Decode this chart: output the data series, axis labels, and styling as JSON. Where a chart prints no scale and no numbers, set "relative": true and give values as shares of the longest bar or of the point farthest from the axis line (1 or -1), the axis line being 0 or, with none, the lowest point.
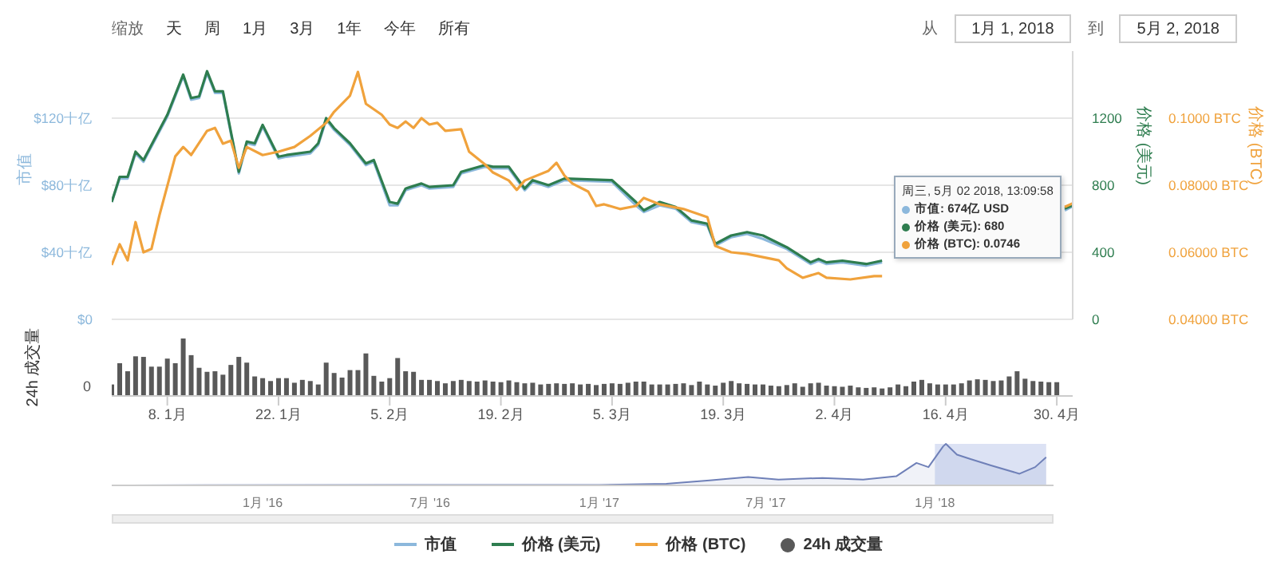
{
  "chart_data": [
    {
      "type": "line",
      "ylabel": "市值",
      "y2label": "价格 (美元)",
      "y3label": "价格 (BTC)",
      "xlim": [
        "2018-01-01",
        "2018-05-02"
      ],
      "ylim": [
        0,
        160
      ],
      "yticks": [
        {
          "value": 0,
          "label": "$0"
        },
        {
          "value": 40,
          "label": "$40十亿"
        },
        {
          "value": 80,
          "label": "$80十亿"
        },
        {
          "value": 120,
          "label": "$120十亿"
        }
      ],
      "y2lim": [
        0,
        1600
      ],
      "y2ticks": [
        0,
        400,
        800,
        1200
      ],
      "y3lim": [
        0.04,
        0.12
      ],
      "y3ticks": [
        {
          "value": 0.04,
          "label": "0.04000 BTC"
        },
        {
          "value": 0.06,
          "label": "0.06000 BTC"
        },
        {
          "value": 0.08,
          "label": "0.08000 BTC"
        },
        {
          "value": 0.1,
          "label": "0.1000 BTC"
        }
      ],
      "tick_labels": "y",
      "grid": "y",
      "legend": "bottom",
      "annotations": [
        "缩放",
        "天",
        "周",
        "1月",
        "3月",
        "1年",
        "今年",
        "所有",
        "从",
        "1月 1, 2018",
        "到",
        "5月 2, 2018",
        "周三, 5月 02 2018, 13:09:58",
        "市值: 674亿 USD",
        "价格 (美元): 680",
        "价格 (BTC): 0.0746"
      ],
      "series": [
        {
          "name": "市值",
          "color": "#8cb8dc",
          "x": [
            "2018-01-01",
            "2018-01-02",
            "2018-01-03",
            "2018-01-04",
            "2018-01-05",
            "2018-01-08",
            "2018-01-10",
            "2018-01-11",
            "2018-01-12",
            "2018-01-13",
            "2018-01-14",
            "2018-01-15",
            "2018-01-17",
            "2018-01-18",
            "2018-01-19",
            "2018-01-20",
            "2018-01-22",
            "2018-01-23",
            "2018-01-26",
            "2018-01-27",
            "2018-01-28",
            "2018-01-29",
            "2018-01-31",
            "2018-02-02",
            "2018-02-03",
            "2018-02-05",
            "2018-02-06",
            "2018-02-07",
            "2018-02-09",
            "2018-02-10",
            "2018-02-13",
            "2018-02-14",
            "2018-02-17",
            "2018-02-18",
            "2018-02-20",
            "2018-02-22",
            "2018-02-23",
            "2018-02-25",
            "2018-02-27",
            "2018-03-05",
            "2018-03-08",
            "2018-03-09",
            "2018-03-11",
            "2018-03-13",
            "2018-03-15",
            "2018-03-17",
            "2018-03-18",
            "2018-03-20",
            "2018-03-22",
            "2018-03-24",
            "2018-03-27",
            "2018-03-30",
            "2018-03-31",
            "2018-04-01",
            "2018-04-03",
            "2018-04-06",
            "2018-04-08",
            "2018-04-19",
            "2018-05-01",
            "2018-05-02"
          ],
          "values": [
            70,
            84,
            84,
            99,
            94,
            121,
            145,
            131,
            132,
            147,
            135,
            135,
            87,
            105,
            104,
            115,
            96,
            97,
            99,
            104,
            119,
            113,
            104,
            92,
            94,
            68,
            68,
            77,
            80,
            78,
            79,
            87,
            91,
            90,
            90,
            77,
            82,
            79,
            83,
            82,
            68,
            64,
            68,
            66,
            58,
            56,
            44,
            49,
            51,
            48,
            42,
            33,
            35,
            33,
            34,
            32,
            34,
            null,
            65,
            67.4
          ]
        },
        {
          "name": "价格 (美元)",
          "color": "#2e7d4f",
          "axis": "y2",
          "x": [
            "2018-01-01",
            "2018-01-02",
            "2018-01-03",
            "2018-01-04",
            "2018-01-05",
            "2018-01-08",
            "2018-01-10",
            "2018-01-11",
            "2018-01-12",
            "2018-01-13",
            "2018-01-14",
            "2018-01-15",
            "2018-01-17",
            "2018-01-18",
            "2018-01-19",
            "2018-01-20",
            "2018-01-22",
            "2018-01-23",
            "2018-01-26",
            "2018-01-27",
            "2018-01-28",
            "2018-01-29",
            "2018-01-31",
            "2018-02-02",
            "2018-02-03",
            "2018-02-05",
            "2018-02-06",
            "2018-02-07",
            "2018-02-09",
            "2018-02-10",
            "2018-02-13",
            "2018-02-14",
            "2018-02-17",
            "2018-02-18",
            "2018-02-20",
            "2018-02-22",
            "2018-02-23",
            "2018-02-25",
            "2018-02-27",
            "2018-03-05",
            "2018-03-08",
            "2018-03-09",
            "2018-03-11",
            "2018-03-13",
            "2018-03-15",
            "2018-03-17",
            "2018-03-18",
            "2018-03-20",
            "2018-03-22",
            "2018-03-24",
            "2018-03-27",
            "2018-03-30",
            "2018-03-31",
            "2018-04-01",
            "2018-04-03",
            "2018-04-06",
            "2018-04-08",
            "2018-04-19",
            "2018-05-01",
            "2018-05-02"
          ],
          "values": [
            700,
            850,
            850,
            1000,
            950,
            1220,
            1460,
            1320,
            1330,
            1480,
            1360,
            1360,
            880,
            1060,
            1050,
            1160,
            970,
            980,
            1000,
            1050,
            1200,
            1140,
            1050,
            930,
            950,
            700,
            690,
            780,
            810,
            790,
            800,
            880,
            920,
            910,
            910,
            780,
            830,
            800,
            840,
            830,
            700,
            650,
            700,
            670,
            590,
            570,
            450,
            500,
            520,
            500,
            430,
            340,
            360,
            340,
            350,
            330,
            350,
            null,
            660,
            680
          ]
        },
        {
          "name": "价格 (BTC)",
          "color": "#f0a23c",
          "axis": "y3",
          "x": [
            "2018-01-01",
            "2018-01-02",
            "2018-01-03",
            "2018-01-04",
            "2018-01-05",
            "2018-01-06",
            "2018-01-07",
            "2018-01-09",
            "2018-01-10",
            "2018-01-11",
            "2018-01-13",
            "2018-01-14",
            "2018-01-15",
            "2018-01-16",
            "2018-01-17",
            "2018-01-18",
            "2018-01-20",
            "2018-01-22",
            "2018-01-24",
            "2018-01-26",
            "2018-01-28",
            "2018-01-29",
            "2018-01-31",
            "2018-02-01",
            "2018-02-02",
            "2018-02-04",
            "2018-02-05",
            "2018-02-06",
            "2018-02-07",
            "2018-02-08",
            "2018-02-09",
            "2018-02-10",
            "2018-02-11",
            "2018-02-12",
            "2018-02-14",
            "2018-02-15",
            "2018-02-17",
            "2018-02-18",
            "2018-02-20",
            "2018-02-21",
            "2018-02-22",
            "2018-02-25",
            "2018-02-26",
            "2018-02-27",
            "2018-02-28",
            "2018-03-02",
            "2018-03-03",
            "2018-03-04",
            "2018-03-06",
            "2018-03-08",
            "2018-03-09",
            "2018-03-11",
            "2018-03-14",
            "2018-03-17",
            "2018-03-18",
            "2018-03-20",
            "2018-03-22",
            "2018-03-26",
            "2018-03-27",
            "2018-03-29",
            "2018-03-31",
            "2018-04-01",
            "2018-04-04",
            "2018-04-07",
            "2018-04-08",
            "2018-04-19",
            "2018-05-01",
            "2018-05-02"
          ],
          "values": [
            0.0562,
            0.0624,
            0.0576,
            0.069,
            0.06,
            0.061,
            0.071,
            0.0886,
            0.0914,
            0.089,
            0.0962,
            0.0971,
            0.0924,
            0.0933,
            0.0852,
            0.0914,
            0.089,
            0.09,
            0.0914,
            0.0947,
            0.0986,
            0.1019,
            0.1067,
            0.1138,
            0.1043,
            0.101,
            0.0981,
            0.0971,
            0.099,
            0.0971,
            0.1,
            0.0981,
            0.0986,
            0.0962,
            0.0967,
            0.09,
            0.0862,
            0.0838,
            0.0814,
            0.0786,
            0.0814,
            0.0843,
            0.0867,
            0.0829,
            0.0805,
            0.0781,
            0.0738,
            0.0743,
            0.0729,
            0.0738,
            0.0762,
            0.0743,
            0.0729,
            0.0705,
            0.0619,
            0.06,
            0.0595,
            0.0576,
            0.0552,
            0.0524,
            0.0538,
            0.0524,
            0.0519,
            0.0529,
            0.0529,
            null,
            0.0735,
            0.0746
          ]
        }
      ]
    },
    {
      "type": "bar",
      "relative": true,
      "ylabel": "24h 成交量",
      "annotations": [
        "0"
      ],
      "legend": "bottom",
      "tick_labels": "x",
      "xlim": [
        "2018-01-01",
        "2018-05-02"
      ],
      "xticks": [
        {
          "value": "2018-01-08",
          "label": "8. 1月"
        },
        {
          "value": "2018-01-22",
          "label": "22. 1月"
        },
        {
          "value": "2018-02-05",
          "label": "5. 2月"
        },
        {
          "value": "2018-02-19",
          "label": "19. 2月"
        },
        {
          "value": "2018-03-05",
          "label": "5. 3月"
        },
        {
          "value": "2018-03-19",
          "label": "19. 3月"
        },
        {
          "value": "2018-04-02",
          "label": "2. 4月"
        },
        {
          "value": "2018-04-16",
          "label": "16. 4月"
        },
        {
          "value": "2018-04-30",
          "label": "30. 4月"
        }
      ],
      "x": [
        "2018-01-01",
        "2018-01-02",
        "2018-01-03",
        "2018-01-04",
        "2018-01-05",
        "2018-01-06",
        "2018-01-07",
        "2018-01-08",
        "2018-01-09",
        "2018-01-10",
        "2018-01-11",
        "2018-01-12",
        "2018-01-13",
        "2018-01-14",
        "2018-01-15",
        "2018-01-16",
        "2018-01-17",
        "2018-01-18",
        "2018-01-19",
        "2018-01-20",
        "2018-01-21",
        "2018-01-22",
        "2018-01-23",
        "2018-01-24",
        "2018-01-25",
        "2018-01-26",
        "2018-01-27",
        "2018-01-28",
        "2018-01-29",
        "2018-01-30",
        "2018-01-31",
        "2018-02-01",
        "2018-02-02",
        "2018-02-03",
        "2018-02-04",
        "2018-02-05",
        "2018-02-06",
        "2018-02-07",
        "2018-02-08",
        "2018-02-09",
        "2018-02-10",
        "2018-02-11",
        "2018-02-12",
        "2018-02-13",
        "2018-02-14",
        "2018-02-15",
        "2018-02-16",
        "2018-02-17",
        "2018-02-18",
        "2018-02-19",
        "2018-02-20",
        "2018-02-21",
        "2018-02-22",
        "2018-02-23",
        "2018-02-24",
        "2018-02-25",
        "2018-02-26",
        "2018-02-27",
        "2018-02-28",
        "2018-03-01",
        "2018-03-02",
        "2018-03-03",
        "2018-03-04",
        "2018-03-05",
        "2018-03-06",
        "2018-03-07",
        "2018-03-08",
        "2018-03-09",
        "2018-03-10",
        "2018-03-11",
        "2018-03-12",
        "2018-03-13",
        "2018-03-14",
        "2018-03-15",
        "2018-03-16",
        "2018-03-17",
        "2018-03-18",
        "2018-03-19",
        "2018-03-20",
        "2018-03-21",
        "2018-03-22",
        "2018-03-23",
        "2018-03-24",
        "2018-03-25",
        "2018-03-26",
        "2018-03-27",
        "2018-03-28",
        "2018-03-29",
        "2018-03-30",
        "2018-03-31",
        "2018-04-01",
        "2018-04-02",
        "2018-04-03",
        "2018-04-04",
        "2018-04-05",
        "2018-04-06",
        "2018-04-07",
        "2018-04-08",
        "2018-04-09",
        "2018-04-10",
        "2018-04-11",
        "2018-04-12",
        "2018-04-13",
        "2018-04-14",
        "2018-04-15",
        "2018-04-16",
        "2018-04-17",
        "2018-04-18",
        "2018-04-19",
        "2018-04-20",
        "2018-04-21",
        "2018-04-22",
        "2018-04-23",
        "2018-04-24",
        "2018-04-25",
        "2018-04-26",
        "2018-04-27",
        "2018-04-28",
        "2018-04-29",
        "2018-04-30"
      ],
      "series": [
        {
          "name": "24h 成交量",
          "color": "#595959",
          "values": [
            0.2,
            0.57,
            0.43,
            0.69,
            0.68,
            0.51,
            0.51,
            0.65,
            0.57,
            1,
            0.71,
            0.49,
            0.42,
            0.43,
            0.37,
            0.54,
            0.68,
            0.58,
            0.34,
            0.31,
            0.26,
            0.31,
            0.31,
            0.23,
            0.28,
            0.26,
            0.2,
            0.58,
            0.4,
            0.32,
            0.45,
            0.45,
            0.74,
            0.35,
            0.25,
            0.31,
            0.66,
            0.43,
            0.42,
            0.28,
            0.28,
            0.26,
            0.22,
            0.26,
            0.28,
            0.26,
            0.25,
            0.27,
            0.25,
            0.24,
            0.27,
            0.24,
            0.22,
            0.23,
            0.2,
            0.21,
            0.22,
            0.21,
            0.22,
            0.2,
            0.21,
            0.19,
            0.21,
            0.22,
            0.21,
            0.23,
            0.25,
            0.25,
            0.2,
            0.2,
            0.2,
            0.21,
            0.22,
            0.19,
            0.25,
            0.2,
            0.18,
            0.23,
            0.26,
            0.22,
            0.21,
            0.2,
            0.2,
            0.18,
            0.17,
            0.19,
            0.22,
            0.16,
            0.22,
            0.23,
            0.18,
            0.17,
            0.16,
            0.18,
            0.15,
            0.14,
            0.15,
            0.13,
            0.15,
            0.2,
            0.17,
            0.25,
            0.28,
            0.22,
            0.2,
            0.2,
            0.2,
            0.22,
            0.27,
            0.29,
            0.28,
            0.26,
            0.27,
            0.34,
            0.43,
            0.3,
            0.26,
            0.25,
            0.24,
            0.24
          ]
        }
      ]
    },
    {
      "type": "area",
      "relative": true,
      "color": "#6f80b8",
      "tick_labels": "x",
      "xlim": [
        "2015-07-21",
        "2018-05-10"
      ],
      "xticks": [
        {
          "value": "2016-01-01",
          "label": "1月 '16"
        },
        {
          "value": "2016-07-01",
          "label": "7月 '16"
        },
        {
          "value": "2017-01-01",
          "label": "1月 '17"
        },
        {
          "value": "2017-07-01",
          "label": "7月 '17"
        },
        {
          "value": "2018-01-01",
          "label": "1月 '18"
        }
      ],
      "bands": [
        {
          "axis": "x",
          "from": "2018-01-01",
          "to": "2018-05-02",
          "color": "#c5cfec"
        }
      ],
      "x": [
        "2015-08-07",
        "2016-06-01",
        "2017-01-01",
        "2017-03-15",
        "2017-05-01",
        "2017-06-12",
        "2017-07-15",
        "2017-09-01",
        "2017-10-15",
        "2017-11-20",
        "2017-12-12",
        "2017-12-25",
        "2018-01-10",
        "2018-01-13",
        "2018-01-25",
        "2018-02-08",
        "2018-03-03",
        "2018-04-03",
        "2018-04-20",
        "2018-05-02"
      ],
      "values": [
        0,
        0.01,
        0.01,
        0.04,
        0.12,
        0.2,
        0.14,
        0.18,
        0.14,
        0.22,
        0.54,
        0.44,
        0.94,
        1,
        0.74,
        0.64,
        0.48,
        0.28,
        0.44,
        0.68
      ]
    }
  ]
}
